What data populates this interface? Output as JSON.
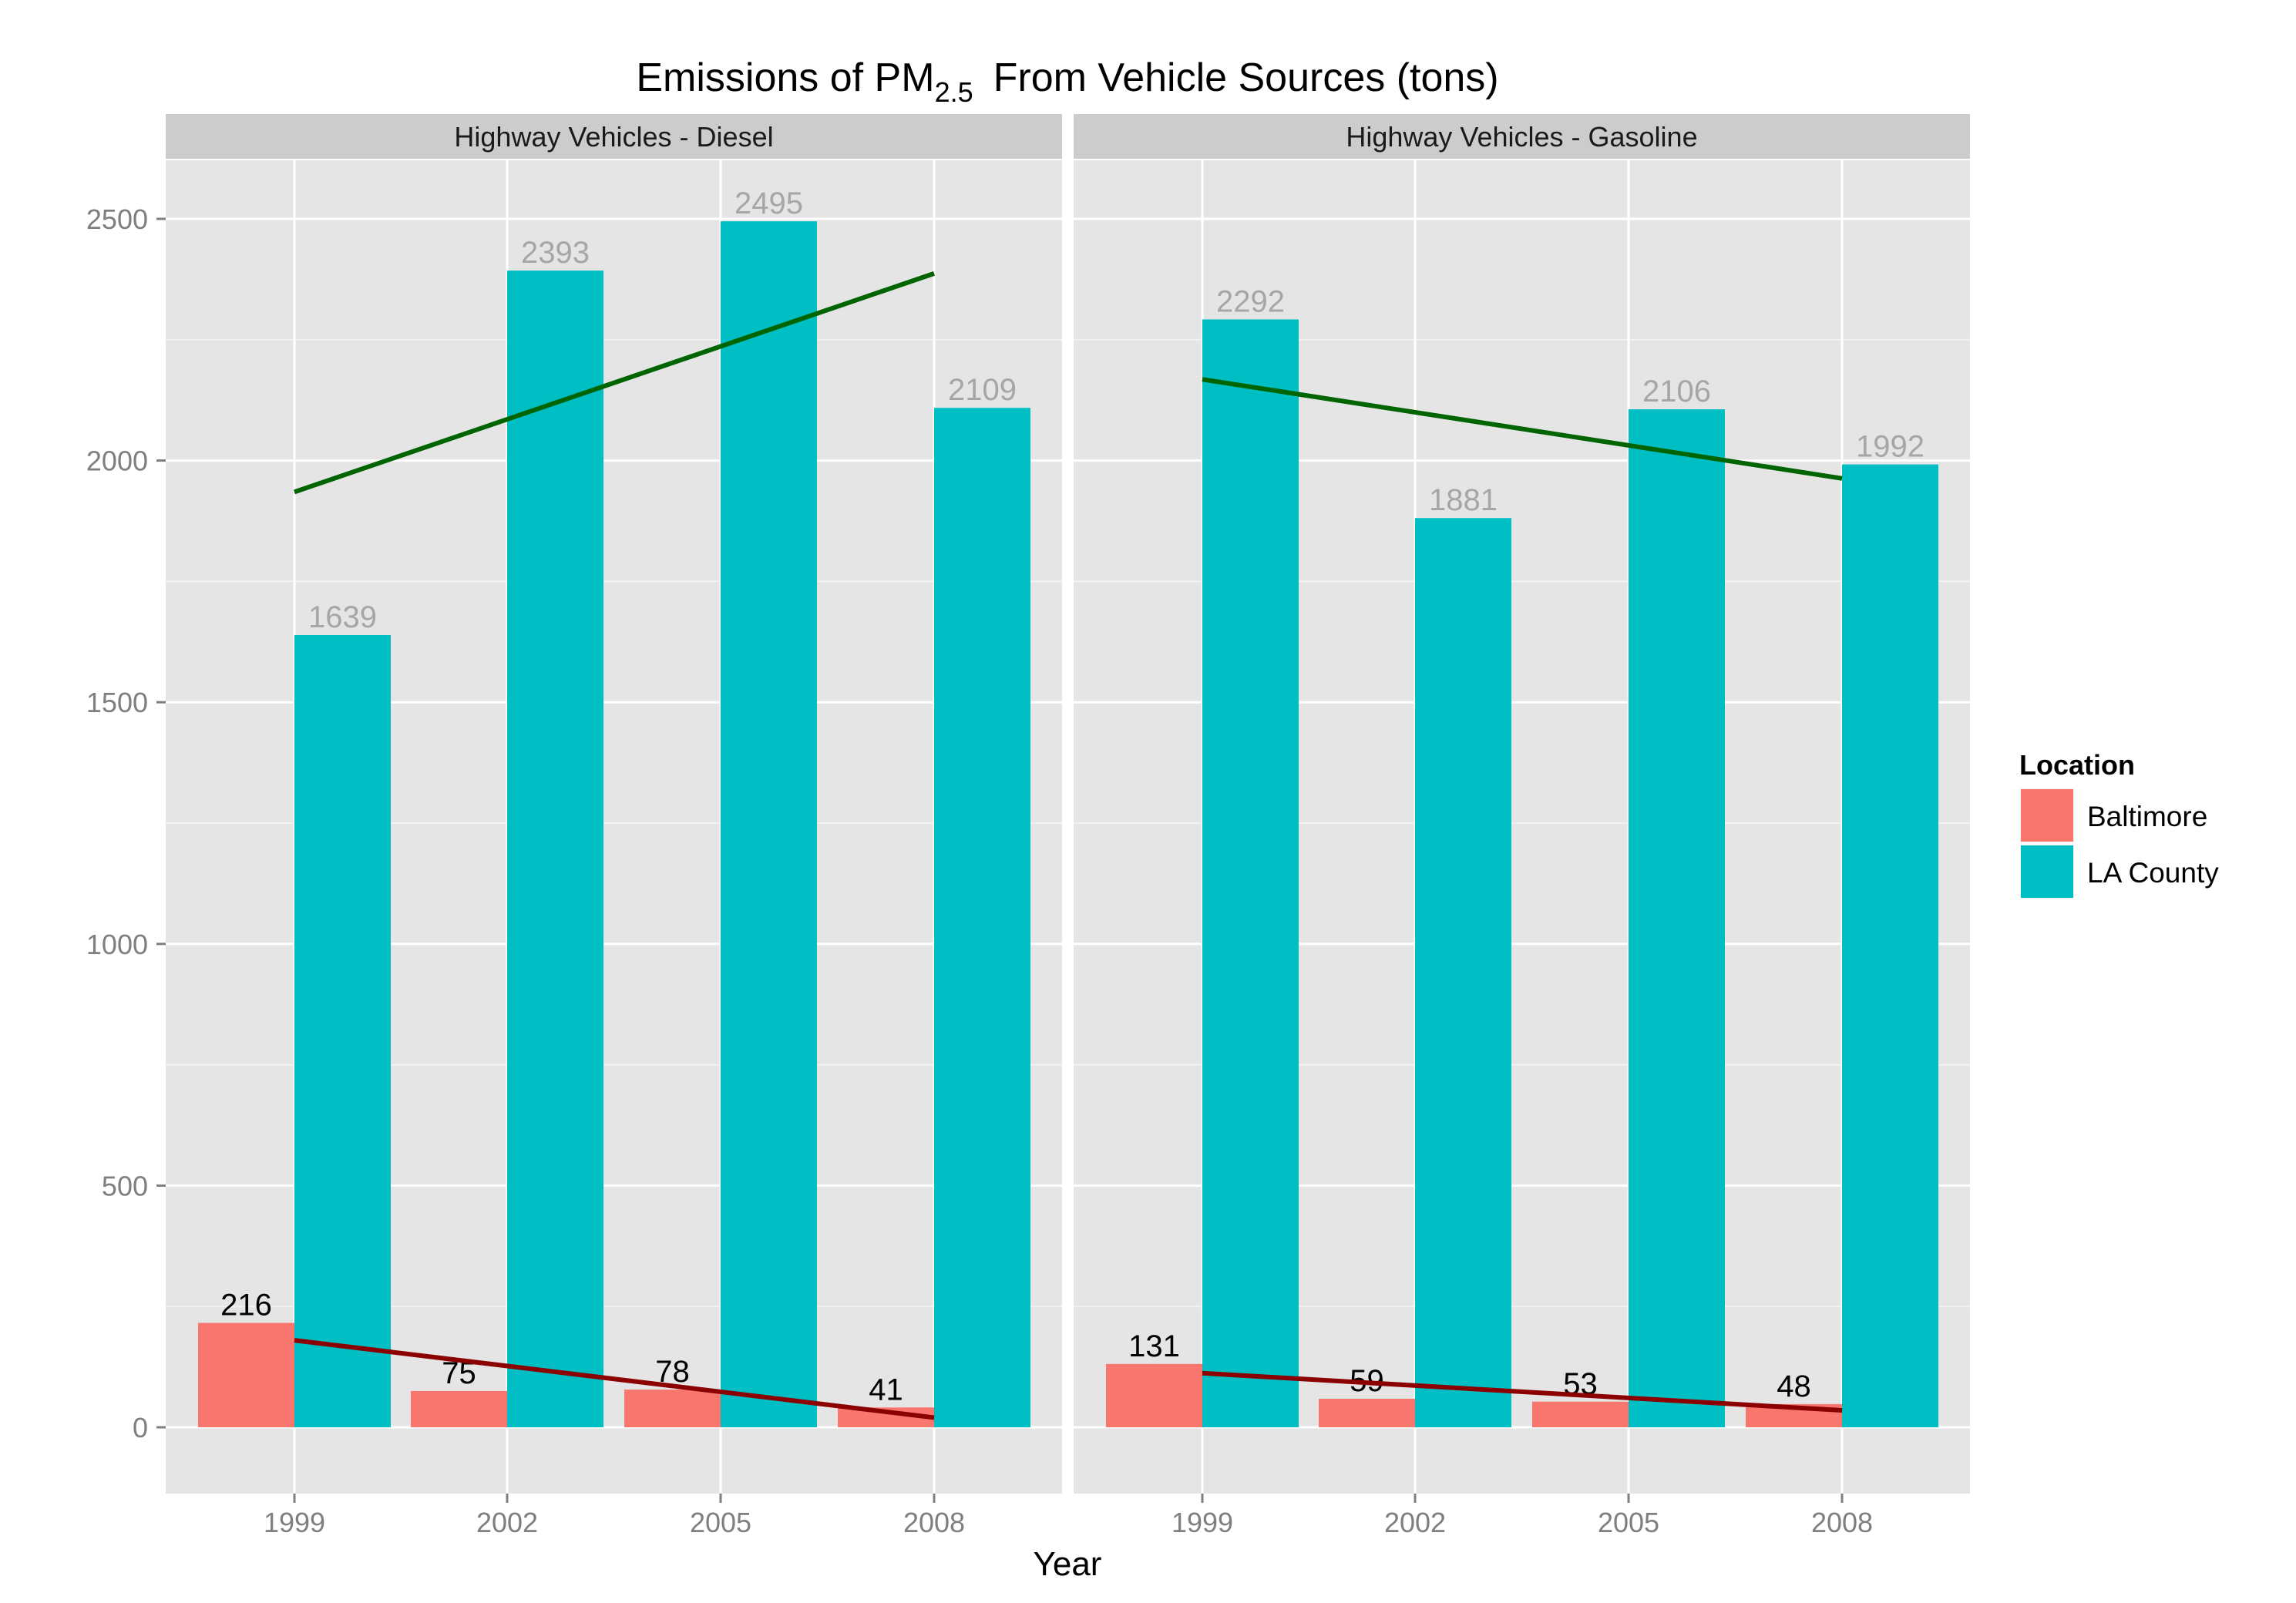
{
  "chart_data": {
    "type": "bar",
    "title": "Emissions of PM",
    "title_subscript": "2.5",
    "title_suffix": "From Vehicle Sources (tons)",
    "xlabel": "Year",
    "ylabel": "",
    "categories": [
      "1999",
      "2002",
      "2005",
      "2008"
    ],
    "ylim": [
      -250,
      2660
    ],
    "yticks": [
      0,
      500,
      1000,
      1500,
      2000,
      2500
    ],
    "grid": true,
    "legend": {
      "title": "Location",
      "position": "right",
      "entries": [
        {
          "name": "Baltimore",
          "color": "#F8766D"
        },
        {
          "name": "LA County",
          "color": "#00BFC4"
        }
      ]
    },
    "panels": [
      {
        "label": "Highway Vehicles - Diesel",
        "series": [
          {
            "name": "Baltimore",
            "values": [
              216,
              75,
              78,
              41
            ],
            "labels": [
              "216",
              "75",
              "78",
              "41"
            ]
          },
          {
            "name": "LA County",
            "values": [
              1639,
              2393,
              2495,
              2109
            ],
            "labels": [
              "1639",
              "2393",
              "2495",
              "2109"
            ]
          }
        ],
        "trend_lines": [
          {
            "series": "Baltimore",
            "color": "#8B0000",
            "start": 180,
            "end": 20
          },
          {
            "series": "LA County",
            "color": "#006400",
            "start": 1935,
            "end": 2387
          }
        ]
      },
      {
        "label": "Highway Vehicles - Gasoline",
        "series": [
          {
            "name": "Baltimore",
            "values": [
              131,
              59,
              53,
              48
            ],
            "labels": [
              "131",
              "59",
              "53",
              "48"
            ]
          },
          {
            "name": "LA County",
            "values": [
              2292,
              1881,
              2106,
              1992
            ],
            "labels": [
              "2292",
              "1881",
              "2106",
              "1992"
            ]
          }
        ],
        "trend_lines": [
          {
            "series": "Baltimore",
            "color": "#8B0000",
            "start": 112,
            "end": 35
          },
          {
            "series": "LA County",
            "color": "#006400",
            "start": 2168,
            "end": 1963
          }
        ]
      }
    ],
    "colors": {
      "panel_bg": "#E5E5E5",
      "strip_bg": "#CCCCCC",
      "grid_major": "#FFFFFF",
      "grid_minor": "#F2F2F2",
      "label_baltimore": "#000000",
      "label_la": "#A6A6A6",
      "axis_text": "#7F7F7F"
    }
  }
}
